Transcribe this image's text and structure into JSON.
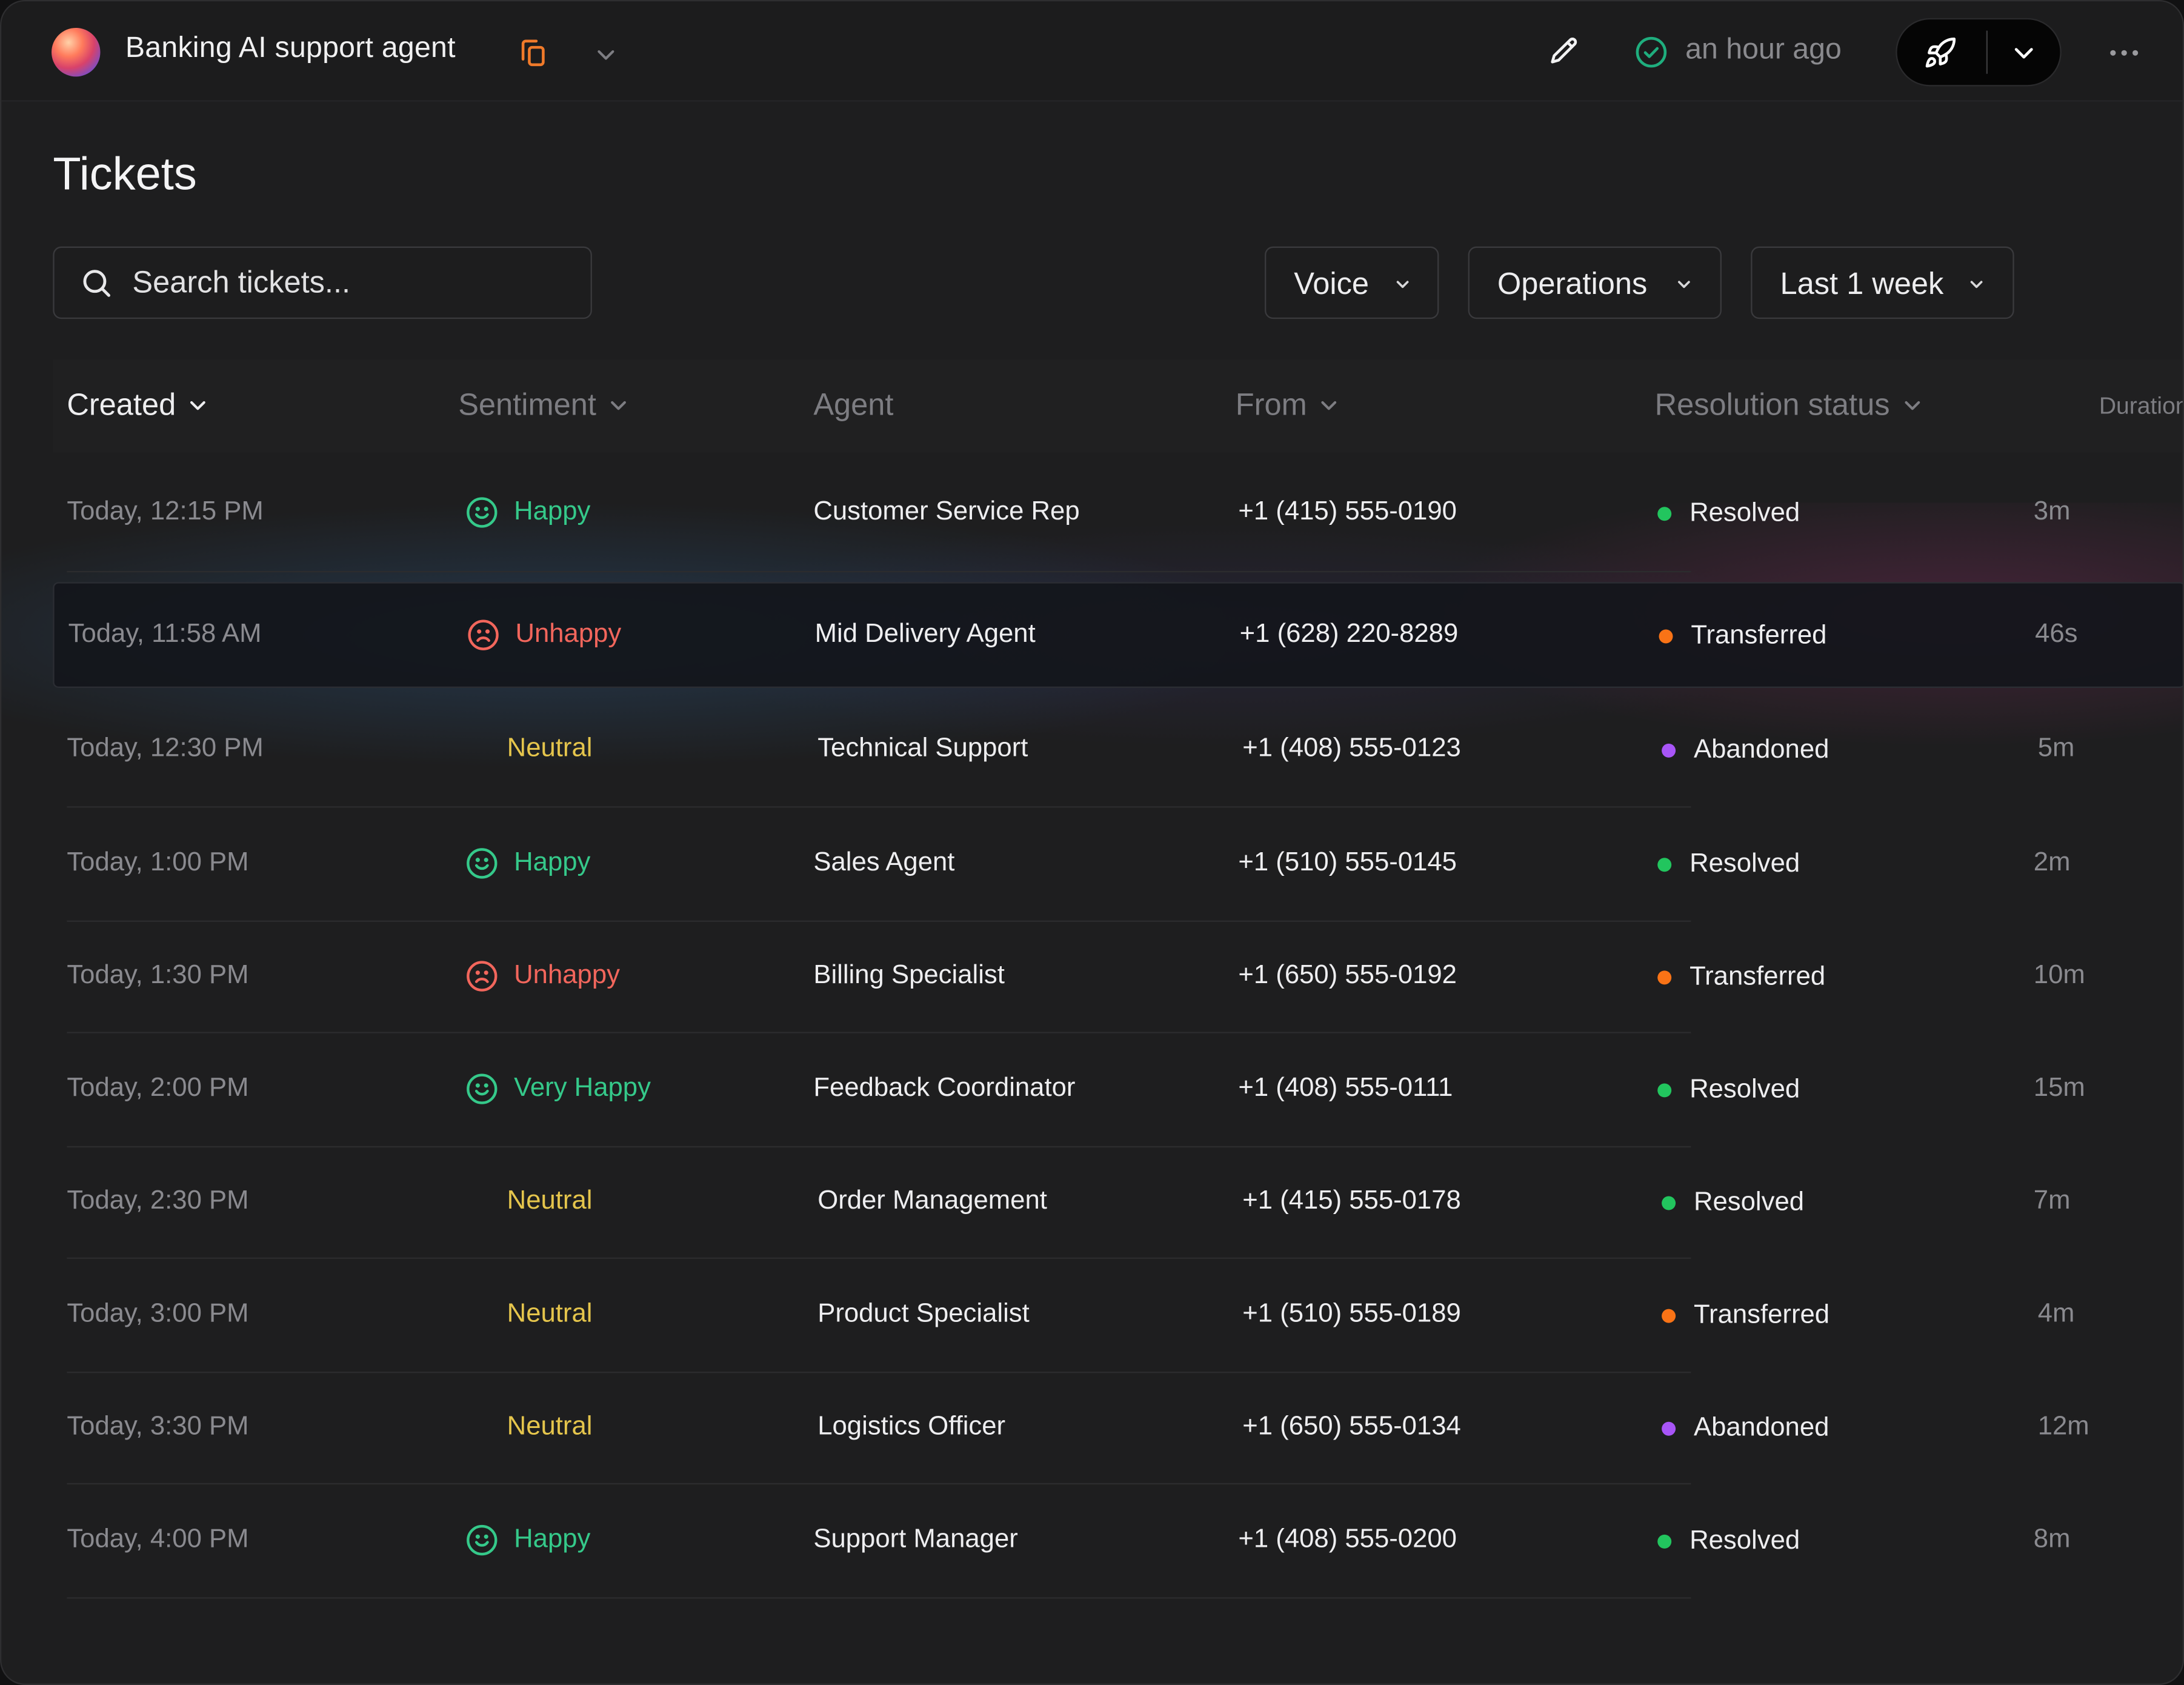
{
  "app": {
    "title": "Banking AI support agent",
    "status_time": "an hour ago"
  },
  "page": {
    "title": "Tickets"
  },
  "search": {
    "placeholder": "Search tickets..."
  },
  "filters": {
    "channel": "Voice",
    "team": "Operations",
    "range": "Last 1 week"
  },
  "columns": {
    "created": "Created",
    "sentiment": "Sentiment",
    "agent": "Agent",
    "from": "From",
    "resolution": "Resolution status",
    "duration": "Duration"
  },
  "colors": {
    "happy": "#35c98a",
    "unhappy": "#f2665c",
    "neutral": "#e5c54c",
    "resolved": "#22c55e",
    "transferred": "#f97316",
    "abandoned": "#a855f7",
    "accent": "#f07a2a"
  },
  "tickets": [
    {
      "created": "Today, 12:15 PM",
      "sentiment": "Happy",
      "sentiment_icon": "smile-icon",
      "agent": "Customer Service Rep",
      "from": "+1 (415) 555-0190",
      "resolution": "Resolved",
      "duration": "3m"
    },
    {
      "created": "Today, 11:58 AM",
      "sentiment": "Unhappy",
      "sentiment_icon": "frown-icon",
      "agent": "Mid Delivery Agent",
      "from": "+1 (628) 220-8289",
      "resolution": "Transferred",
      "duration": "46s"
    },
    {
      "created": "Today, 12:30 PM",
      "sentiment": "Neutral",
      "sentiment_icon": "",
      "agent": "Technical Support",
      "from": "+1 (408) 555-0123",
      "resolution": "Abandoned",
      "duration": "5m"
    },
    {
      "created": "Today, 1:00 PM",
      "sentiment": "Happy",
      "sentiment_icon": "smile-icon",
      "agent": "Sales Agent",
      "from": "+1 (510) 555-0145",
      "resolution": "Resolved",
      "duration": "2m"
    },
    {
      "created": "Today, 1:30 PM",
      "sentiment": "Unhappy",
      "sentiment_icon": "frown-icon",
      "agent": "Billing Specialist",
      "from": "+1 (650) 555-0192",
      "resolution": "Transferred",
      "duration": "10m"
    },
    {
      "created": "Today, 2:00 PM",
      "sentiment": "Very Happy",
      "sentiment_icon": "smile-icon",
      "agent": "Feedback Coordinator",
      "from": "+1 (408) 555-0111",
      "resolution": "Resolved",
      "duration": "15m"
    },
    {
      "created": "Today, 2:30 PM",
      "sentiment": "Neutral",
      "sentiment_icon": "",
      "agent": "Order Management",
      "from": "+1 (415) 555-0178",
      "resolution": "Resolved",
      "duration": "7m"
    },
    {
      "created": "Today, 3:00 PM",
      "sentiment": "Neutral",
      "sentiment_icon": "",
      "agent": "Product Specialist",
      "from": "+1 (510) 555-0189",
      "resolution": "Transferred",
      "duration": "4m"
    },
    {
      "created": "Today, 3:30 PM",
      "sentiment": "Neutral",
      "sentiment_icon": "",
      "agent": "Logistics Officer",
      "from": "+1 (650) 555-0134",
      "resolution": "Abandoned",
      "duration": "12m"
    },
    {
      "created": "Today, 4:00 PM",
      "sentiment": "Happy",
      "sentiment_icon": "smile-icon",
      "agent": "Support Manager",
      "from": "+1 (408) 555-0200",
      "resolution": "Resolved",
      "duration": "8m"
    }
  ]
}
